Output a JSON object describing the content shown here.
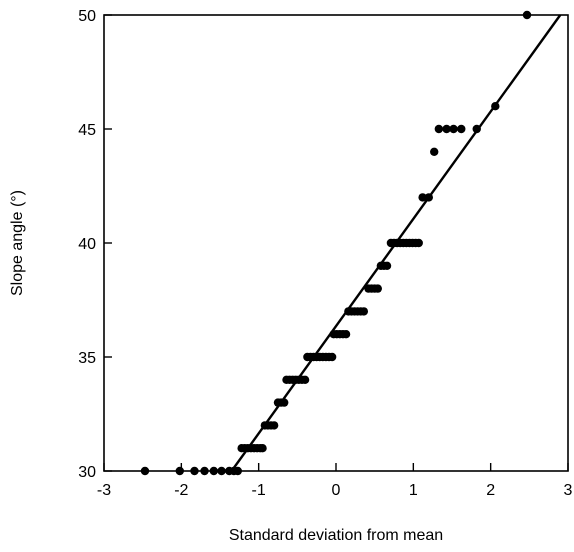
{
  "chart_data": {
    "type": "scatter",
    "title": "",
    "xlabel": "Standard deviation from mean",
    "ylabel": "Slope angle (°)",
    "xlim": [
      -3,
      3
    ],
    "ylim": [
      30,
      50
    ],
    "xticks": [
      -3,
      -2,
      -1,
      0,
      1,
      2,
      3
    ],
    "yticks": [
      30,
      35,
      40,
      45,
      50
    ],
    "xtick_labels": [
      "-3",
      "-2",
      "-1",
      "0",
      "1",
      "2",
      "3"
    ],
    "ytick_labels": [
      "30",
      "35",
      "40",
      "45",
      "50"
    ],
    "grid": false,
    "legend": "none",
    "marker_color": "#000000",
    "series": [
      {
        "x": [
          -2.47,
          -2.02,
          -1.83,
          -1.7,
          -1.58,
          -1.48,
          -1.38,
          -1.32,
          -1.27,
          -1.22,
          -1.18,
          -1.14,
          -1.1,
          -1.06,
          -1.02,
          -0.98,
          -0.95,
          -0.92,
          -0.88,
          -0.84,
          -0.8,
          -0.75,
          -0.71,
          -0.67,
          -0.64,
          -0.6,
          -0.56,
          -0.52,
          -0.48,
          -0.44,
          -0.4,
          -0.37,
          -0.33,
          -0.29,
          -0.25,
          -0.21,
          -0.17,
          -0.13,
          -0.09,
          -0.05,
          -0.03,
          0.01,
          0.05,
          0.09,
          0.13,
          0.16,
          0.2,
          0.24,
          0.28,
          0.32,
          0.36,
          0.42,
          0.46,
          0.5,
          0.54,
          0.58,
          0.62,
          0.66,
          0.71,
          0.75,
          0.79,
          0.83,
          0.87,
          0.91,
          0.95,
          0.99,
          1.03,
          1.07,
          1.12,
          1.2,
          1.27,
          1.33,
          1.43,
          1.52,
          1.62,
          1.82,
          2.06,
          2.47
        ],
        "y": [
          30,
          30,
          30,
          30,
          30,
          30,
          30,
          30,
          30,
          31,
          31,
          31,
          31,
          31,
          31,
          31,
          31,
          32,
          32,
          32,
          32,
          33,
          33,
          33,
          34,
          34,
          34,
          34,
          34,
          34,
          34,
          35,
          35,
          35,
          35,
          35,
          35,
          35,
          35,
          35,
          36,
          36,
          36,
          36,
          36,
          37,
          37,
          37,
          37,
          37,
          37,
          38,
          38,
          38,
          38,
          39,
          39,
          39,
          40,
          40,
          40,
          40,
          40,
          40,
          40,
          40,
          40,
          40,
          42,
          42,
          44,
          45,
          45,
          45,
          45,
          45,
          46,
          50
        ]
      }
    ],
    "fit_line": {
      "x": [
        -1.35,
        2.9
      ],
      "y": [
        30,
        50
      ]
    }
  }
}
